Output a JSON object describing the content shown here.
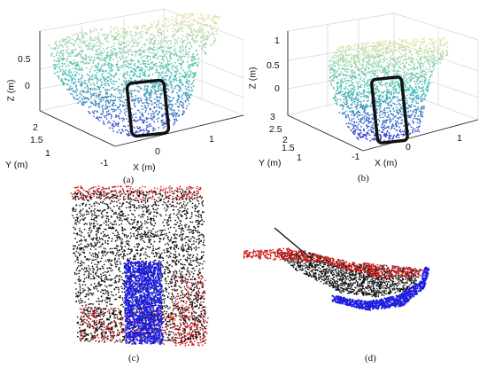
{
  "panels": [
    {
      "id": "a",
      "caption": "(a)",
      "z_axis_label": "Z (m)",
      "x_axis_label": "X (m)",
      "y_axis_label": "Y (m)",
      "z_ticks": [
        "0.5",
        "0"
      ],
      "x_ticks": [
        "-1",
        "0",
        "1"
      ],
      "y_ticks": [
        "2",
        "1.5",
        "1"
      ]
    },
    {
      "id": "b",
      "caption": "(b)",
      "z_axis_label": "Z (m)",
      "x_axis_label": "X (m)",
      "y_axis_label": "Y (m)",
      "z_ticks": [
        "1",
        "0.5",
        "0"
      ],
      "x_ticks": [
        "-1",
        "0",
        "1"
      ],
      "y_ticks": [
        "3",
        "2.5",
        "2",
        "1.5",
        "1"
      ]
    },
    {
      "id": "c",
      "caption": "(c)"
    },
    {
      "id": "d",
      "caption": "(d)"
    }
  ],
  "colors": {
    "cloud_top": "#f2e7a6",
    "cloud_mid": "#3fbfb0",
    "cloud_low": "#3b3bd6",
    "highlight_box": "#111111",
    "points_black": "#111111",
    "points_red": "#d11a1a",
    "points_blue": "#1f1fe0"
  }
}
